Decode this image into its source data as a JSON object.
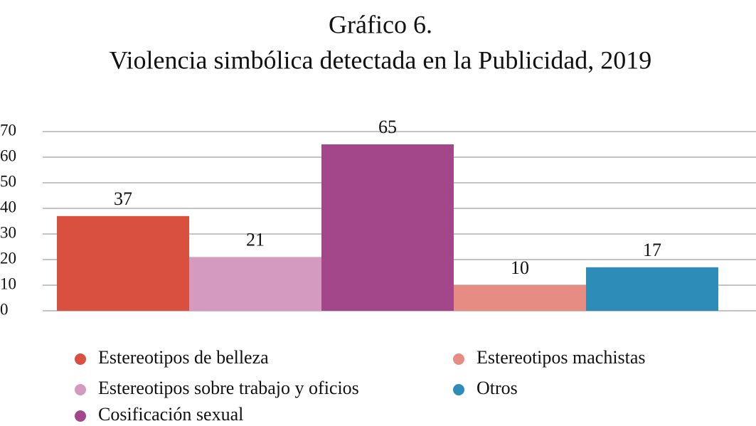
{
  "chart_data": {
    "type": "bar",
    "title": "Gráfico 6.",
    "subtitle": "Violencia simbólica detectada en la Publicidad, 2019",
    "series": [
      {
        "name": "Estereotipos de belleza",
        "color": "#d9503f",
        "values": [
          37
        ]
      },
      {
        "name": "Estereotipos sobre trabajo y oficios",
        "color": "#d49ac0",
        "values": [
          21
        ]
      },
      {
        "name": "Cosificación sexual",
        "color": "#a3468a",
        "values": [
          65
        ]
      },
      {
        "name": "Estereotipos machistas",
        "color": "#e78c82",
        "values": [
          10
        ]
      },
      {
        "name": "Otros",
        "color": "#2e8cb8",
        "values": [
          17
        ]
      }
    ],
    "ylim": [
      0,
      70
    ],
    "yticks": [
      0,
      10,
      20,
      30,
      40,
      50,
      60,
      70
    ],
    "grid": true
  }
}
